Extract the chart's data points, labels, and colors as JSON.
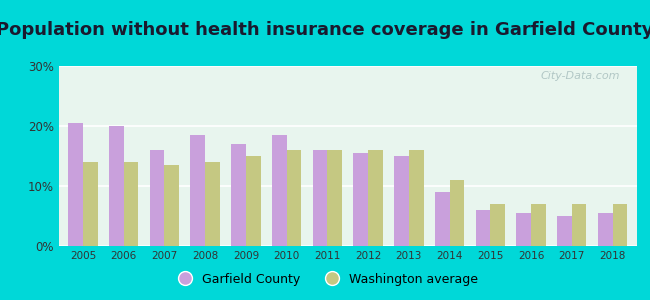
{
  "title": "Population without health insurance coverage in Garfield County",
  "years": [
    2005,
    2006,
    2007,
    2008,
    2009,
    2010,
    2011,
    2012,
    2013,
    2014,
    2015,
    2016,
    2017,
    2018
  ],
  "garfield": [
    20.5,
    20.0,
    16.0,
    18.5,
    17.0,
    18.5,
    16.0,
    15.5,
    15.0,
    9.0,
    6.0,
    5.5,
    5.0,
    5.5
  ],
  "wa_avg": [
    14.0,
    14.0,
    13.5,
    14.0,
    15.0,
    16.0,
    16.0,
    16.0,
    16.0,
    11.0,
    7.0,
    7.0,
    7.0,
    7.0
  ],
  "garfield_color": "#c9a0dc",
  "wa_color": "#c5c882",
  "bg_outer": "#00d8d8",
  "bg_plot": "#e8f5ee",
  "ylim": [
    0,
    30
  ],
  "yticks": [
    0,
    10,
    20,
    30
  ],
  "ytick_labels": [
    "0%",
    "10%",
    "20%",
    "30%"
  ],
  "legend_garfield": "Garfield County",
  "legend_wa": "Washington average",
  "title_fontsize": 13,
  "bar_width": 0.36
}
